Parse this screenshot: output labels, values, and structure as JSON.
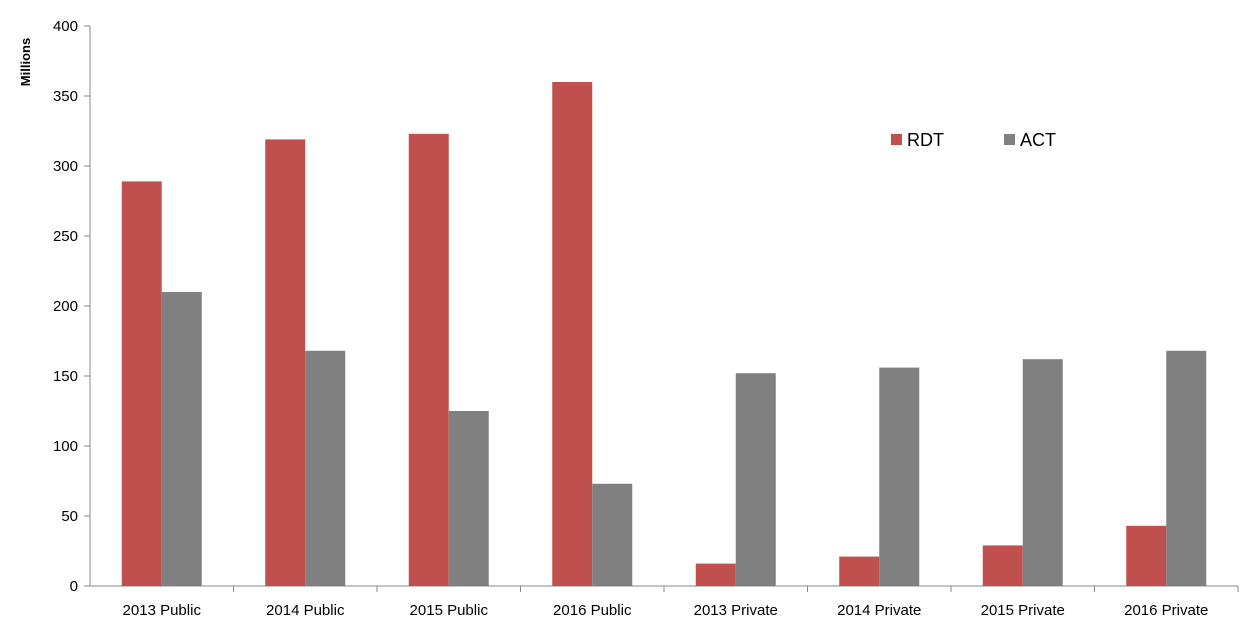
{
  "chart_data": {
    "type": "bar",
    "categories": [
      "2013 Public",
      "2014 Public",
      "2015 Public",
      "2016 Public",
      "2013 Private",
      "2014 Private",
      "2015 Private",
      "2016 Private"
    ],
    "series": [
      {
        "name": "RDT",
        "color": "#c0504d",
        "values": [
          289,
          319,
          323,
          360,
          16,
          21,
          29,
          43
        ]
      },
      {
        "name": "ACT",
        "color": "#808080",
        "values": [
          210,
          168,
          125,
          73,
          152,
          156,
          162,
          168
        ]
      }
    ],
    "title": "",
    "xlabel": "",
    "ylabel": "Millions",
    "ylim": [
      0,
      400
    ],
    "yticks": [
      0,
      50,
      100,
      150,
      200,
      250,
      300,
      350,
      400
    ],
    "grid": false,
    "legend_position": "top-right"
  }
}
